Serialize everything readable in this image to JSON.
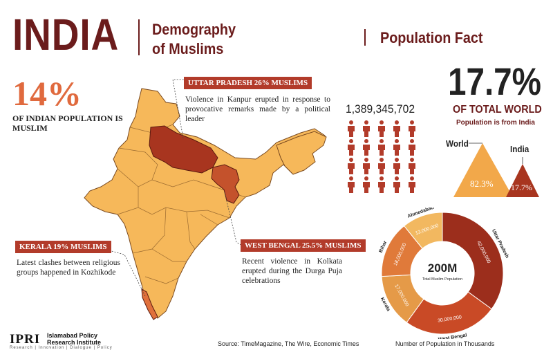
{
  "header": {
    "title": "INDIA",
    "subtitle_line1": "Demography",
    "subtitle_line2": "of Muslims",
    "section_title": "Population Fact"
  },
  "india_share": {
    "value": "14%",
    "caption": "OF INDIAN POPULATION IS MUSLIM"
  },
  "callouts": {
    "uttar_pradesh": {
      "label": "UTTAR PRADESH 26% MUSLIMS",
      "note": "Violence in Kanpur erupted in response to provocative remarks made by a political leader"
    },
    "kerala": {
      "label": "KERALA 19% MUSLIMS",
      "note": "Latest clashes between religious groups happened in Kozhikode"
    },
    "west_bengal": {
      "label": "WEST BENGAL 25.5% MUSLIMS",
      "note": "Recent violence in Kolkata erupted during the Durga Puja celebrations"
    }
  },
  "population": {
    "count": "1,389,345,702"
  },
  "world_share": {
    "value": "17.7%",
    "caption": "OF TOTAL WORLD",
    "subcaption": "Population is from India",
    "world_label": "World",
    "india_label": "India",
    "world_value": "82.3%",
    "india_value": "17.7%"
  },
  "chart_data": {
    "type": "pie",
    "center_value": "200M",
    "center_label": "Total Muslim Population",
    "caption": "Number of Population in Thousands",
    "slices": [
      {
        "label": "Uttar Pradesh",
        "value": 42000000,
        "value_label": "42,000,000",
        "color": "#9c2e1c"
      },
      {
        "label": "West Bengal",
        "value": 30000000,
        "value_label": "30,000,000",
        "color": "#c94a26"
      },
      {
        "label": "Kerala",
        "value": 17000000,
        "value_label": "17,000,000",
        "color": "#e59a48"
      },
      {
        "label": "Bihar",
        "value": 18000000,
        "value_label": "18,000,000",
        "color": "#e07a3a"
      },
      {
        "label": "Ahmedabad",
        "value": 13000000,
        "value_label": "13,000,000",
        "color": "#f2b860"
      }
    ]
  },
  "footer": {
    "source": "Source: TimeMagazine, The Wire, Economic Times",
    "logo": "IPRI",
    "org_name": "Islamabad Policy Research Institute",
    "tagline": "Research | Innovation | Dialogue | Policy"
  },
  "colors": {
    "maroon": "#6b1c1c",
    "accent_orange": "#e06a3e",
    "map_fill": "#f6b85a",
    "highlight_red": "#b23b2a"
  }
}
